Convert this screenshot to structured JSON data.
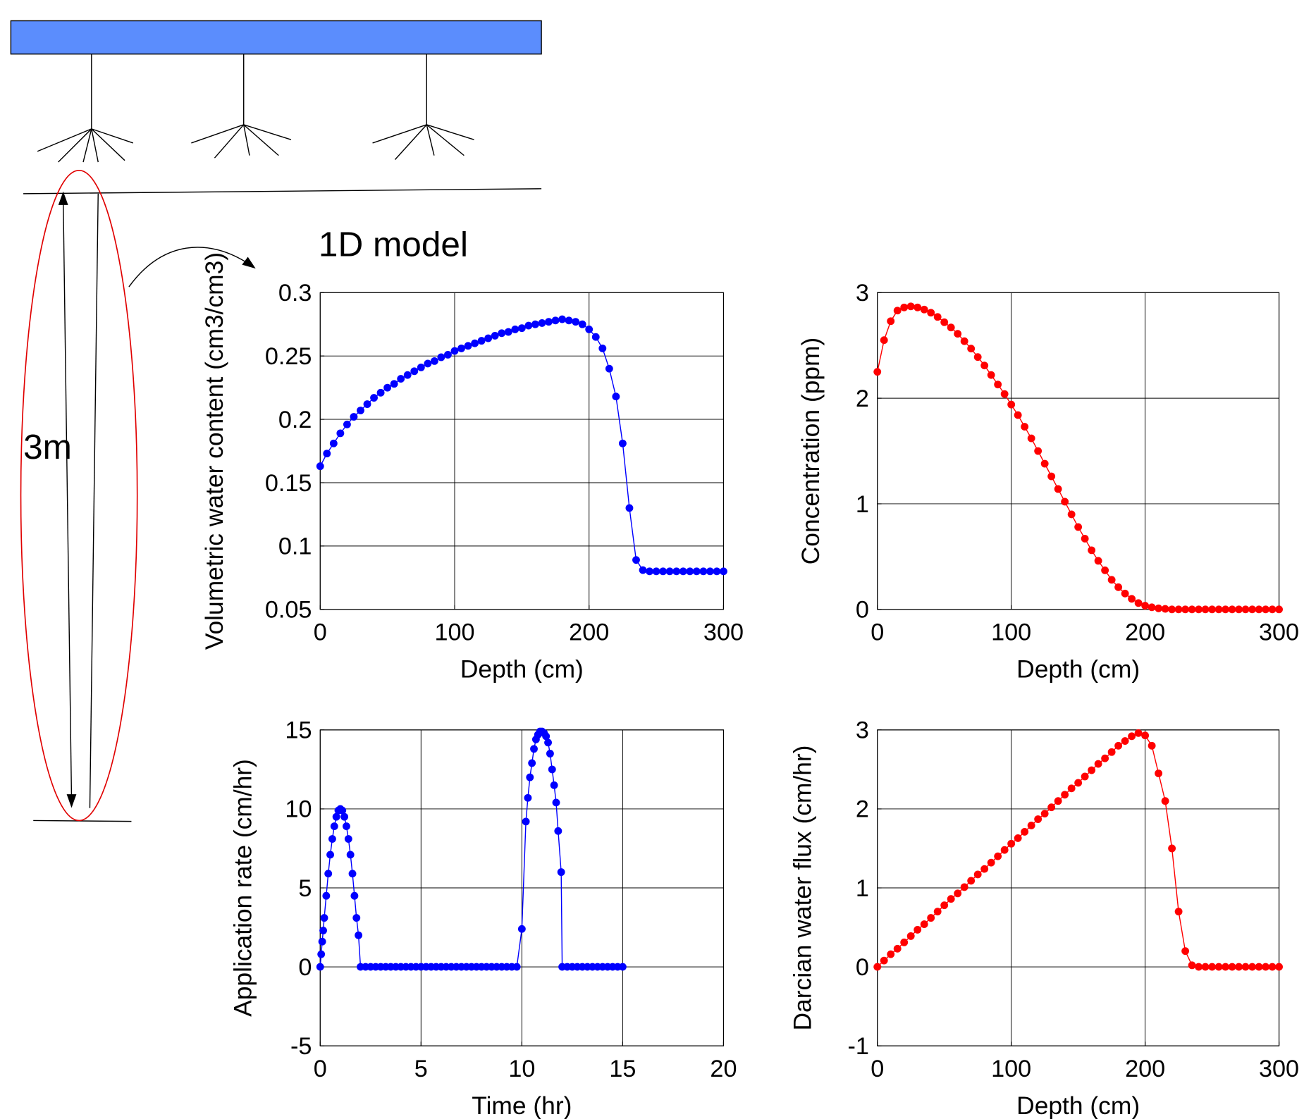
{
  "diagram": {
    "title": "1D model",
    "depth_label": "3m"
  },
  "chart_data": [
    {
      "type": "line",
      "xlabel": "Depth (cm)",
      "ylabel": "Volumetric water content (cm3/cm3)",
      "color": "#0000ff",
      "grid": true,
      "markers": true,
      "xlim": [
        0,
        300
      ],
      "ylim": [
        0.05,
        0.3
      ],
      "xticks": [
        0,
        100,
        200,
        300
      ],
      "yticks": [
        0.05,
        0.1,
        0.15,
        0.2,
        0.25,
        0.3
      ],
      "x": [
        0,
        5,
        10,
        15,
        20,
        25,
        30,
        35,
        40,
        45,
        50,
        55,
        60,
        65,
        70,
        75,
        80,
        85,
        90,
        95,
        100,
        105,
        110,
        115,
        120,
        125,
        130,
        135,
        140,
        145,
        150,
        155,
        160,
        165,
        170,
        175,
        180,
        185,
        190,
        195,
        200,
        205,
        210,
        215,
        220,
        225,
        230,
        235,
        240,
        245,
        250,
        255,
        260,
        265,
        270,
        275,
        280,
        285,
        290,
        295,
        300
      ],
      "values": [
        0.163,
        0.173,
        0.181,
        0.189,
        0.196,
        0.202,
        0.207,
        0.212,
        0.217,
        0.221,
        0.225,
        0.228,
        0.232,
        0.235,
        0.238,
        0.241,
        0.244,
        0.246,
        0.249,
        0.251,
        0.254,
        0.256,
        0.258,
        0.26,
        0.262,
        0.264,
        0.266,
        0.268,
        0.269,
        0.271,
        0.272,
        0.274,
        0.275,
        0.276,
        0.277,
        0.278,
        0.279,
        0.278,
        0.277,
        0.275,
        0.271,
        0.265,
        0.256,
        0.24,
        0.218,
        0.181,
        0.13,
        0.089,
        0.081,
        0.08,
        0.08,
        0.08,
        0.08,
        0.08,
        0.08,
        0.08,
        0.08,
        0.08,
        0.08,
        0.08,
        0.08
      ]
    },
    {
      "type": "line",
      "xlabel": "Depth (cm)",
      "ylabel": "Concentration (ppm)",
      "color": "#ff0000",
      "grid": true,
      "markers": true,
      "xlim": [
        0,
        300
      ],
      "ylim": [
        0,
        3
      ],
      "xticks": [
        0,
        100,
        200,
        300
      ],
      "yticks": [
        0,
        1,
        2,
        3
      ],
      "x": [
        0,
        5,
        10,
        15,
        20,
        25,
        30,
        35,
        40,
        45,
        50,
        55,
        60,
        65,
        70,
        75,
        80,
        85,
        90,
        95,
        100,
        105,
        110,
        115,
        120,
        125,
        130,
        135,
        140,
        145,
        150,
        155,
        160,
        165,
        170,
        175,
        180,
        185,
        190,
        195,
        200,
        205,
        210,
        215,
        220,
        225,
        230,
        235,
        240,
        245,
        250,
        255,
        260,
        265,
        270,
        275,
        280,
        285,
        290,
        295,
        300
      ],
      "values": [
        2.25,
        2.55,
        2.73,
        2.83,
        2.86,
        2.87,
        2.86,
        2.84,
        2.81,
        2.77,
        2.72,
        2.67,
        2.61,
        2.54,
        2.47,
        2.39,
        2.31,
        2.22,
        2.13,
        2.04,
        1.94,
        1.84,
        1.73,
        1.62,
        1.5,
        1.38,
        1.26,
        1.14,
        1.02,
        0.9,
        0.78,
        0.67,
        0.56,
        0.46,
        0.37,
        0.28,
        0.21,
        0.15,
        0.1,
        0.06,
        0.035,
        0.02,
        0.01,
        0.005,
        0,
        0,
        0,
        0,
        0,
        0,
        0,
        0,
        0,
        0,
        0,
        0,
        0,
        0,
        0,
        0,
        0
      ]
    },
    {
      "type": "line",
      "xlabel": "Time (hr)",
      "ylabel": "Application rate (cm/hr)",
      "color": "#0000ff",
      "grid": true,
      "markers": true,
      "xlim": [
        0,
        20
      ],
      "ylim": [
        -5,
        15
      ],
      "xticks": [
        0,
        5,
        10,
        15,
        20
      ],
      "yticks": [
        -5,
        0,
        5,
        10,
        15
      ],
      "x": [
        0,
        0.05,
        0.1,
        0.15,
        0.2,
        0.3,
        0.4,
        0.5,
        0.6,
        0.7,
        0.8,
        0.9,
        1,
        1.1,
        1.2,
        1.3,
        1.4,
        1.5,
        1.6,
        1.7,
        1.8,
        1.9,
        2,
        2.25,
        2.5,
        2.75,
        3,
        3.25,
        3.5,
        3.75,
        4,
        4.25,
        4.5,
        4.75,
        5,
        5.25,
        5.5,
        5.75,
        6,
        6.25,
        6.5,
        6.75,
        7,
        7.25,
        7.5,
        7.75,
        8,
        8.25,
        8.5,
        8.75,
        9,
        9.25,
        9.5,
        9.75,
        10,
        10.2,
        10.3,
        10.4,
        10.5,
        10.6,
        10.7,
        10.8,
        10.9,
        11,
        11.1,
        11.2,
        11.3,
        11.4,
        11.5,
        11.6,
        11.7,
        11.8,
        11.95,
        12,
        12.25,
        12.5,
        12.75,
        13,
        13.25,
        13.5,
        13.75,
        14,
        14.25,
        14.5,
        14.75,
        15
      ],
      "values": [
        0,
        0.8,
        1.6,
        2.3,
        3.1,
        4.5,
        5.9,
        7.1,
        8.1,
        8.9,
        9.5,
        9.9,
        10,
        9.9,
        9.5,
        8.9,
        8.1,
        7.1,
        5.9,
        4.5,
        3.1,
        2,
        0,
        0,
        0,
        0,
        0,
        0,
        0,
        0,
        0,
        0,
        0,
        0,
        0,
        0,
        0,
        0,
        0,
        0,
        0,
        0,
        0,
        0,
        0,
        0,
        0,
        0,
        0,
        0,
        0,
        0,
        0,
        0,
        2.4,
        9.2,
        10.7,
        12,
        12.9,
        13.8,
        14.4,
        14.7,
        14.9,
        14.9,
        14.8,
        14.6,
        14.2,
        13.5,
        12.5,
        11.5,
        10.4,
        8.6,
        6,
        0,
        0,
        0,
        0,
        0,
        0,
        0,
        0,
        0,
        0,
        0,
        0,
        0
      ]
    },
    {
      "type": "line",
      "xlabel": "Depth (cm)",
      "ylabel": "Darcian water flux (cm/hr)",
      "color": "#ff0000",
      "grid": true,
      "markers": true,
      "xlim": [
        0,
        300
      ],
      "ylim": [
        -1,
        3
      ],
      "xticks": [
        0,
        100,
        200,
        300
      ],
      "yticks": [
        -1,
        0,
        1,
        2,
        3
      ],
      "x": [
        0,
        5,
        10,
        15,
        20,
        25,
        30,
        35,
        40,
        45,
        50,
        55,
        60,
        65,
        70,
        75,
        80,
        85,
        90,
        95,
        100,
        105,
        110,
        115,
        120,
        125,
        130,
        135,
        140,
        145,
        150,
        155,
        160,
        165,
        170,
        175,
        180,
        185,
        190,
        195,
        200,
        205,
        210,
        215,
        220,
        225,
        230,
        235,
        240,
        245,
        250,
        255,
        260,
        265,
        270,
        275,
        280,
        285,
        290,
        295,
        300
      ],
      "values": [
        0,
        0.08,
        0.16,
        0.23,
        0.31,
        0.39,
        0.47,
        0.54,
        0.62,
        0.7,
        0.78,
        0.86,
        0.93,
        1.01,
        1.09,
        1.17,
        1.24,
        1.32,
        1.4,
        1.48,
        1.56,
        1.63,
        1.71,
        1.79,
        1.87,
        1.94,
        2.02,
        2.1,
        2.18,
        2.26,
        2.33,
        2.41,
        2.49,
        2.57,
        2.64,
        2.72,
        2.8,
        2.86,
        2.92,
        2.96,
        2.93,
        2.8,
        2.45,
        2.1,
        1.5,
        0.7,
        0.2,
        0.02,
        0,
        0,
        0,
        0,
        0,
        0,
        0,
        0,
        0,
        0,
        0,
        0,
        0
      ]
    }
  ]
}
